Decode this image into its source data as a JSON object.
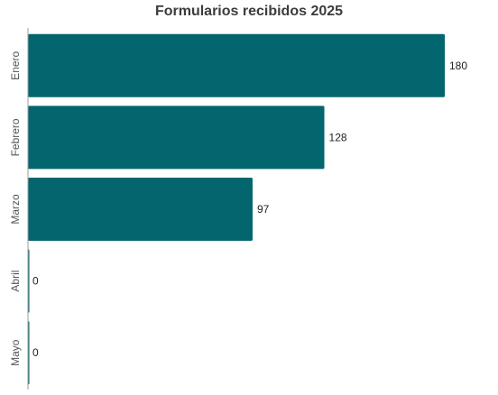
{
  "chart_data": {
    "type": "bar",
    "orientation": "horizontal",
    "title": "Formularios recibidos 2025",
    "xlabel": "",
    "ylabel": "",
    "categories": [
      "Enero",
      "Febrero",
      "Marzo",
      "Abril",
      "Mayo"
    ],
    "values": [
      180,
      128,
      97,
      0,
      0
    ],
    "xlim": [
      0,
      180
    ],
    "bar_color": "#03666f",
    "axis_color": "#9e9e9e",
    "grid": false,
    "legend": "none"
  }
}
